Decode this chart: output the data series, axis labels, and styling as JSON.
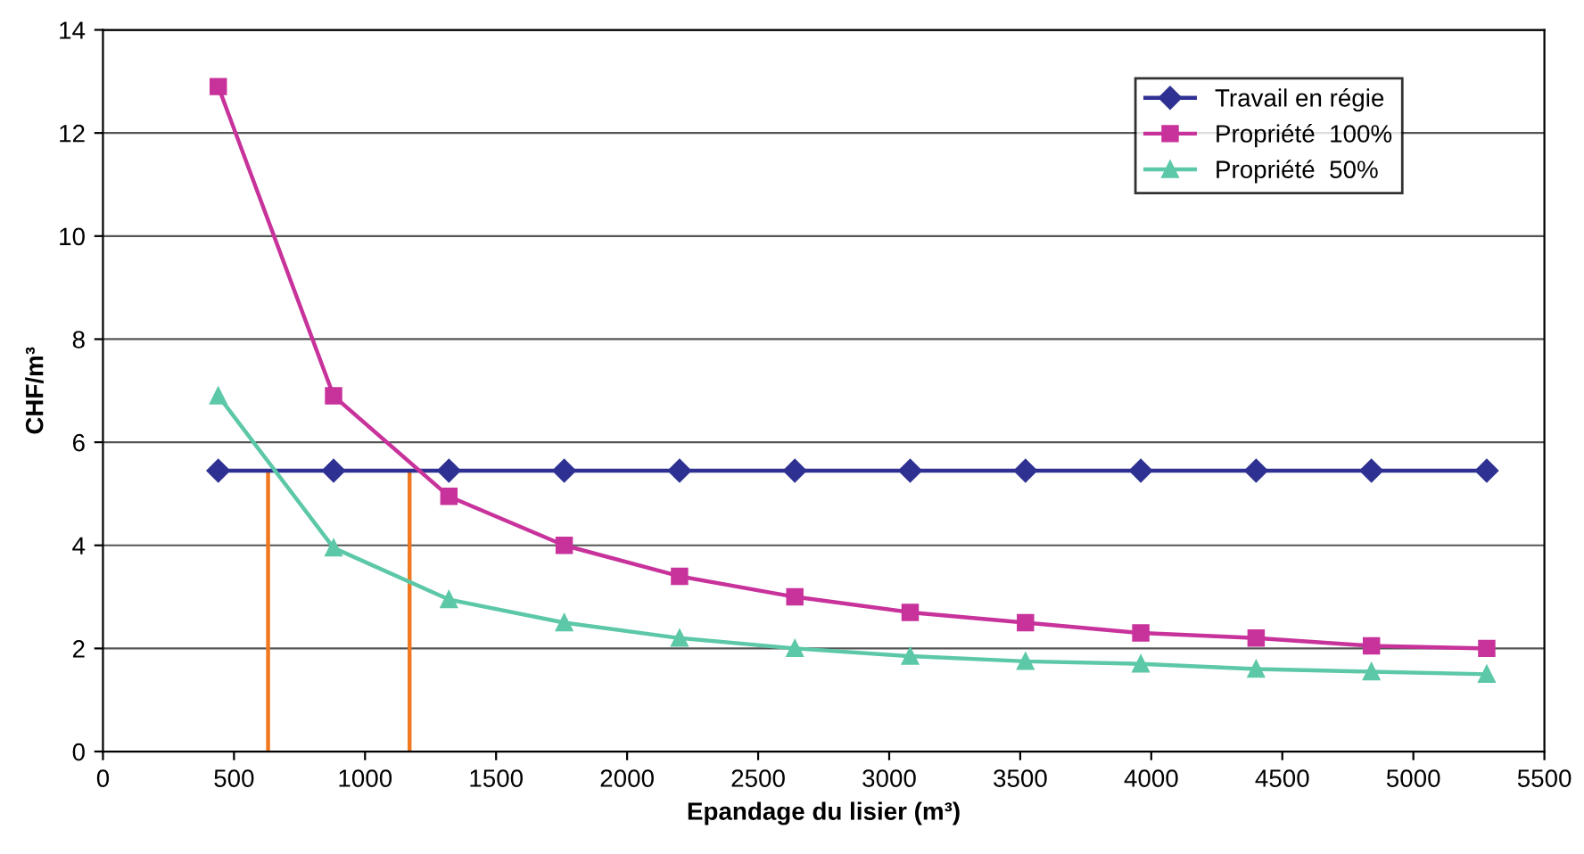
{
  "chart_data": {
    "type": "line",
    "xlabel": "Epandage du lisier (m³)",
    "ylabel": "CHF/m³",
    "x": [
      440,
      880,
      1320,
      1760,
      2200,
      2640,
      3080,
      3520,
      3960,
      4400,
      4840,
      5280
    ],
    "series": [
      {
        "name": "Travail en régie",
        "color": "#2e3192",
        "marker": "diamond",
        "values": [
          5.45,
          5.45,
          5.45,
          5.45,
          5.45,
          5.45,
          5.45,
          5.45,
          5.45,
          5.45,
          5.45,
          5.45
        ]
      },
      {
        "name": "Propriété  100%",
        "color": "#c8329b",
        "marker": "square",
        "values": [
          12.9,
          6.9,
          4.95,
          4.0,
          3.4,
          3.0,
          2.7,
          2.5,
          2.3,
          2.2,
          2.05,
          2.0
        ]
      },
      {
        "name": "Propriété  50%",
        "color": "#5cc8a8",
        "marker": "triangle",
        "values": [
          6.9,
          3.95,
          2.95,
          2.5,
          2.2,
          2.0,
          1.85,
          1.75,
          1.7,
          1.6,
          1.55,
          1.5
        ]
      }
    ],
    "ref_lines": [
      {
        "axis": "x",
        "value": 630,
        "color": "#f07820"
      },
      {
        "axis": "x",
        "value": 1170,
        "color": "#f07820"
      }
    ],
    "xlim": [
      0,
      5500
    ],
    "xticks": [
      0,
      500,
      1000,
      1500,
      2000,
      2500,
      3000,
      3500,
      4000,
      4500,
      5000,
      5500
    ],
    "ylim": [
      0,
      14
    ],
    "yticks": [
      0,
      2,
      4,
      6,
      8,
      10,
      12,
      14
    ],
    "grid": "y",
    "legend": "top right",
    "line_style": "solid"
  }
}
